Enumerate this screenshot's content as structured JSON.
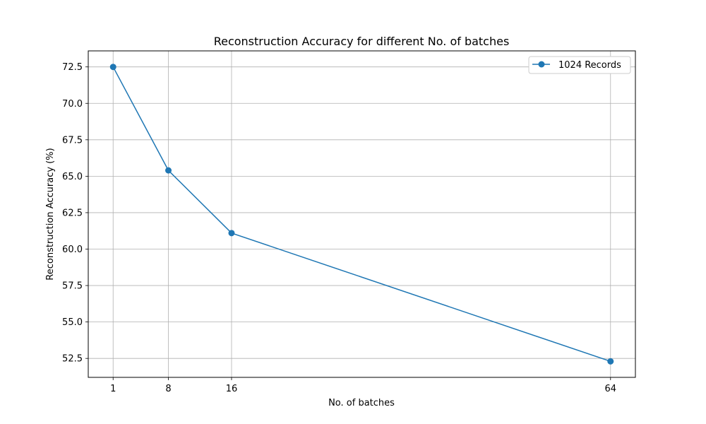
{
  "chart_data": {
    "type": "line",
    "title": "Reconstruction Accuracy for different No. of batches",
    "xlabel": "No. of batches",
    "ylabel": "Reconstruction Accuracy (%)",
    "x": [
      1,
      8,
      16,
      64
    ],
    "x_tick_labels": [
      "1",
      "8",
      "16",
      "64"
    ],
    "y_ticks": [
      52.5,
      55.0,
      57.5,
      60.0,
      62.5,
      65.0,
      67.5,
      70.0,
      72.5
    ],
    "y_tick_labels": [
      "52.5",
      "55.0",
      "57.5",
      "60.0",
      "62.5",
      "65.0",
      "67.5",
      "70.0",
      "72.5"
    ],
    "xlim": [
      -2.15,
      67.15
    ],
    "ylim": [
      51.2,
      73.6
    ],
    "grid": true,
    "legend_position": "top-right",
    "series": [
      {
        "name": "1024 Records",
        "values": [
          72.5,
          65.4,
          61.1,
          52.3
        ],
        "color": "#1f77b4",
        "marker": "circle"
      }
    ]
  }
}
